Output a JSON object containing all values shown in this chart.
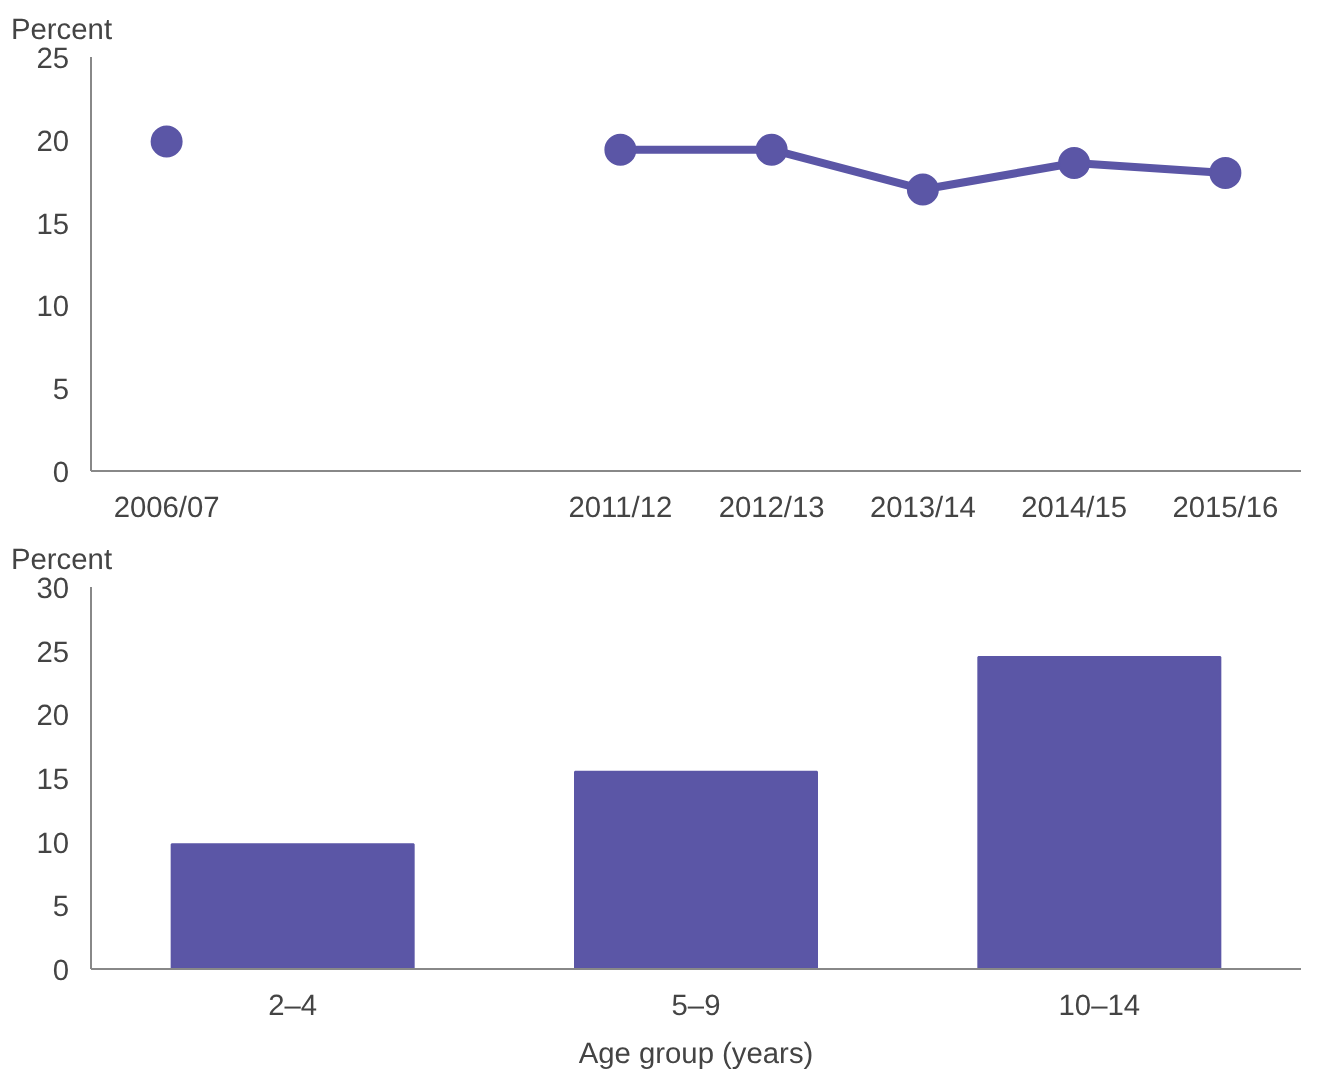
{
  "chart_data": [
    {
      "type": "line",
      "ylabel": "Percent",
      "categories": [
        "2006/07",
        null,
        null,
        "2011/12",
        "2012/13",
        "2013/14",
        "2014/15",
        "2015/16"
      ],
      "series": [
        {
          "color": "#5b56a6",
          "values": [
            19.9,
            null,
            null,
            19.4,
            19.4,
            17.0,
            18.6,
            18.0
          ]
        }
      ],
      "ylim": [
        0,
        25
      ],
      "yticks": [
        0,
        5,
        10,
        15,
        20,
        25
      ],
      "marker": "circle",
      "line_style": "solid"
    },
    {
      "type": "bar",
      "ylabel": "Percent",
      "xlabel": "Age group (years)",
      "categories": [
        "2–4",
        "5–9",
        "10–14"
      ],
      "series": [
        {
          "color": "#5b56a6",
          "values": [
            9.8,
            15.5,
            24.5
          ]
        }
      ],
      "ylim": [
        0,
        30
      ],
      "yticks": [
        0,
        5,
        10,
        15,
        20,
        25,
        30
      ]
    }
  ]
}
